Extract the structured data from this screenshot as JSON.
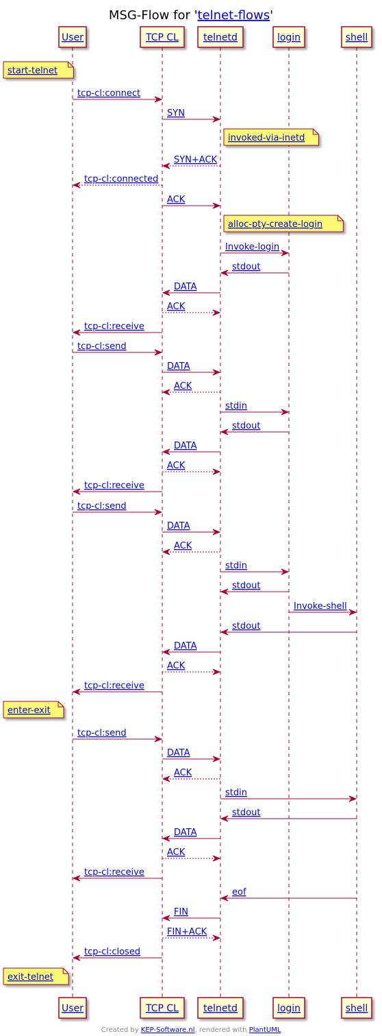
{
  "title": {
    "prefix": "MSG-Flow for '",
    "link": "telnet-flows",
    "suffix": "'"
  },
  "participants": [
    {
      "id": "user",
      "label": "User"
    },
    {
      "id": "tcp",
      "label": "TCP CL"
    },
    {
      "id": "telnetd",
      "label": "telnetd"
    },
    {
      "id": "login",
      "label": "login"
    },
    {
      "id": "shell",
      "label": "shell"
    }
  ],
  "events": [
    {
      "kind": "note",
      "over": "user",
      "text": "start-telnet"
    },
    {
      "kind": "msg",
      "from": "user",
      "to": "tcp",
      "text": "tcp-cl:connect",
      "style": "solid"
    },
    {
      "kind": "msg",
      "from": "tcp",
      "to": "telnetd",
      "text": "SYN",
      "style": "solid"
    },
    {
      "kind": "note",
      "over": "telnetd",
      "text": "invoked-via-inetd"
    },
    {
      "kind": "msg",
      "from": "telnetd",
      "to": "tcp",
      "text": "SYN+ACK",
      "style": "dashed"
    },
    {
      "kind": "msg",
      "from": "tcp",
      "to": "user",
      "text": "tcp-cl:connected",
      "style": "dashed"
    },
    {
      "kind": "msg",
      "from": "tcp",
      "to": "telnetd",
      "text": "ACK",
      "style": "solid"
    },
    {
      "kind": "note",
      "over": "telnetd",
      "text": "alloc-pty-create-login"
    },
    {
      "kind": "msg",
      "from": "telnetd",
      "to": "login",
      "text": "Invoke-login",
      "style": "solid"
    },
    {
      "kind": "msg",
      "from": "login",
      "to": "telnetd",
      "text": "stdout",
      "style": "solid"
    },
    {
      "kind": "msg",
      "from": "telnetd",
      "to": "tcp",
      "text": "DATA",
      "style": "solid"
    },
    {
      "kind": "msg",
      "from": "tcp",
      "to": "telnetd",
      "text": "ACK",
      "style": "dashed"
    },
    {
      "kind": "msg",
      "from": "tcp",
      "to": "user",
      "text": "tcp-cl:receive",
      "style": "solid"
    },
    {
      "kind": "msg",
      "from": "user",
      "to": "tcp",
      "text": "tcp-cl:send",
      "style": "solid"
    },
    {
      "kind": "msg",
      "from": "tcp",
      "to": "telnetd",
      "text": "DATA",
      "style": "solid"
    },
    {
      "kind": "msg",
      "from": "telnetd",
      "to": "tcp",
      "text": "ACK",
      "style": "dashed"
    },
    {
      "kind": "msg",
      "from": "telnetd",
      "to": "login",
      "text": "stdin",
      "style": "solid"
    },
    {
      "kind": "msg",
      "from": "login",
      "to": "telnetd",
      "text": "stdout",
      "style": "solid"
    },
    {
      "kind": "msg",
      "from": "telnetd",
      "to": "tcp",
      "text": "DATA",
      "style": "solid"
    },
    {
      "kind": "msg",
      "from": "tcp",
      "to": "telnetd",
      "text": "ACK",
      "style": "dashed"
    },
    {
      "kind": "msg",
      "from": "tcp",
      "to": "user",
      "text": "tcp-cl:receive",
      "style": "solid"
    },
    {
      "kind": "msg",
      "from": "user",
      "to": "tcp",
      "text": "tcp-cl:send",
      "style": "solid"
    },
    {
      "kind": "msg",
      "from": "tcp",
      "to": "telnetd",
      "text": "DATA",
      "style": "solid"
    },
    {
      "kind": "msg",
      "from": "telnetd",
      "to": "tcp",
      "text": "ACK",
      "style": "dashed"
    },
    {
      "kind": "msg",
      "from": "telnetd",
      "to": "login",
      "text": "stdin",
      "style": "solid"
    },
    {
      "kind": "msg",
      "from": "login",
      "to": "telnetd",
      "text": "stdout",
      "style": "solid"
    },
    {
      "kind": "msg",
      "from": "login",
      "to": "shell",
      "text": "Invoke-shell",
      "style": "solid"
    },
    {
      "kind": "msg",
      "from": "shell",
      "to": "telnetd",
      "text": "stdout",
      "style": "solid"
    },
    {
      "kind": "msg",
      "from": "telnetd",
      "to": "tcp",
      "text": "DATA",
      "style": "solid"
    },
    {
      "kind": "msg",
      "from": "tcp",
      "to": "telnetd",
      "text": "ACK",
      "style": "dashed"
    },
    {
      "kind": "msg",
      "from": "tcp",
      "to": "user",
      "text": "tcp-cl:receive",
      "style": "solid"
    },
    {
      "kind": "note",
      "over": "user",
      "text": "enter-exit"
    },
    {
      "kind": "msg",
      "from": "user",
      "to": "tcp",
      "text": "tcp-cl:send",
      "style": "solid"
    },
    {
      "kind": "msg",
      "from": "tcp",
      "to": "telnetd",
      "text": "DATA",
      "style": "solid"
    },
    {
      "kind": "msg",
      "from": "telnetd",
      "to": "tcp",
      "text": "ACK",
      "style": "dashed"
    },
    {
      "kind": "msg",
      "from": "telnetd",
      "to": "shell",
      "text": "stdin",
      "style": "solid"
    },
    {
      "kind": "msg",
      "from": "shell",
      "to": "telnetd",
      "text": "stdout",
      "style": "solid"
    },
    {
      "kind": "msg",
      "from": "telnetd",
      "to": "tcp",
      "text": "DATA",
      "style": "solid"
    },
    {
      "kind": "msg",
      "from": "tcp",
      "to": "telnetd",
      "text": "ACK",
      "style": "dashed"
    },
    {
      "kind": "msg",
      "from": "tcp",
      "to": "user",
      "text": "tcp-cl:receive",
      "style": "solid"
    },
    {
      "kind": "msg",
      "from": "shell",
      "to": "telnetd",
      "text": "eof",
      "style": "solid"
    },
    {
      "kind": "msg",
      "from": "telnetd",
      "to": "tcp",
      "text": "FIN",
      "style": "solid"
    },
    {
      "kind": "msg",
      "from": "tcp",
      "to": "telnetd",
      "text": "FIN+ACK",
      "style": "dashed"
    },
    {
      "kind": "msg",
      "from": "tcp",
      "to": "user",
      "text": "tcp-cl:closed",
      "style": "solid"
    },
    {
      "kind": "note",
      "over": "user",
      "text": "exit-telnet"
    }
  ],
  "footer": {
    "prefix": "Created by ",
    "link1": "KEP-Software.nl",
    "middle": ", rendered with ",
    "link2": "PlantUML"
  },
  "colors": {
    "participant_fill": "#FEFECE",
    "participant_border": "#A80036",
    "lifeline": "#A80036",
    "arrow": "#A80036",
    "note_fill": "#FBFB77",
    "note_border": "#A80036",
    "link": "#0000EE",
    "footer_text": "#888888"
  }
}
